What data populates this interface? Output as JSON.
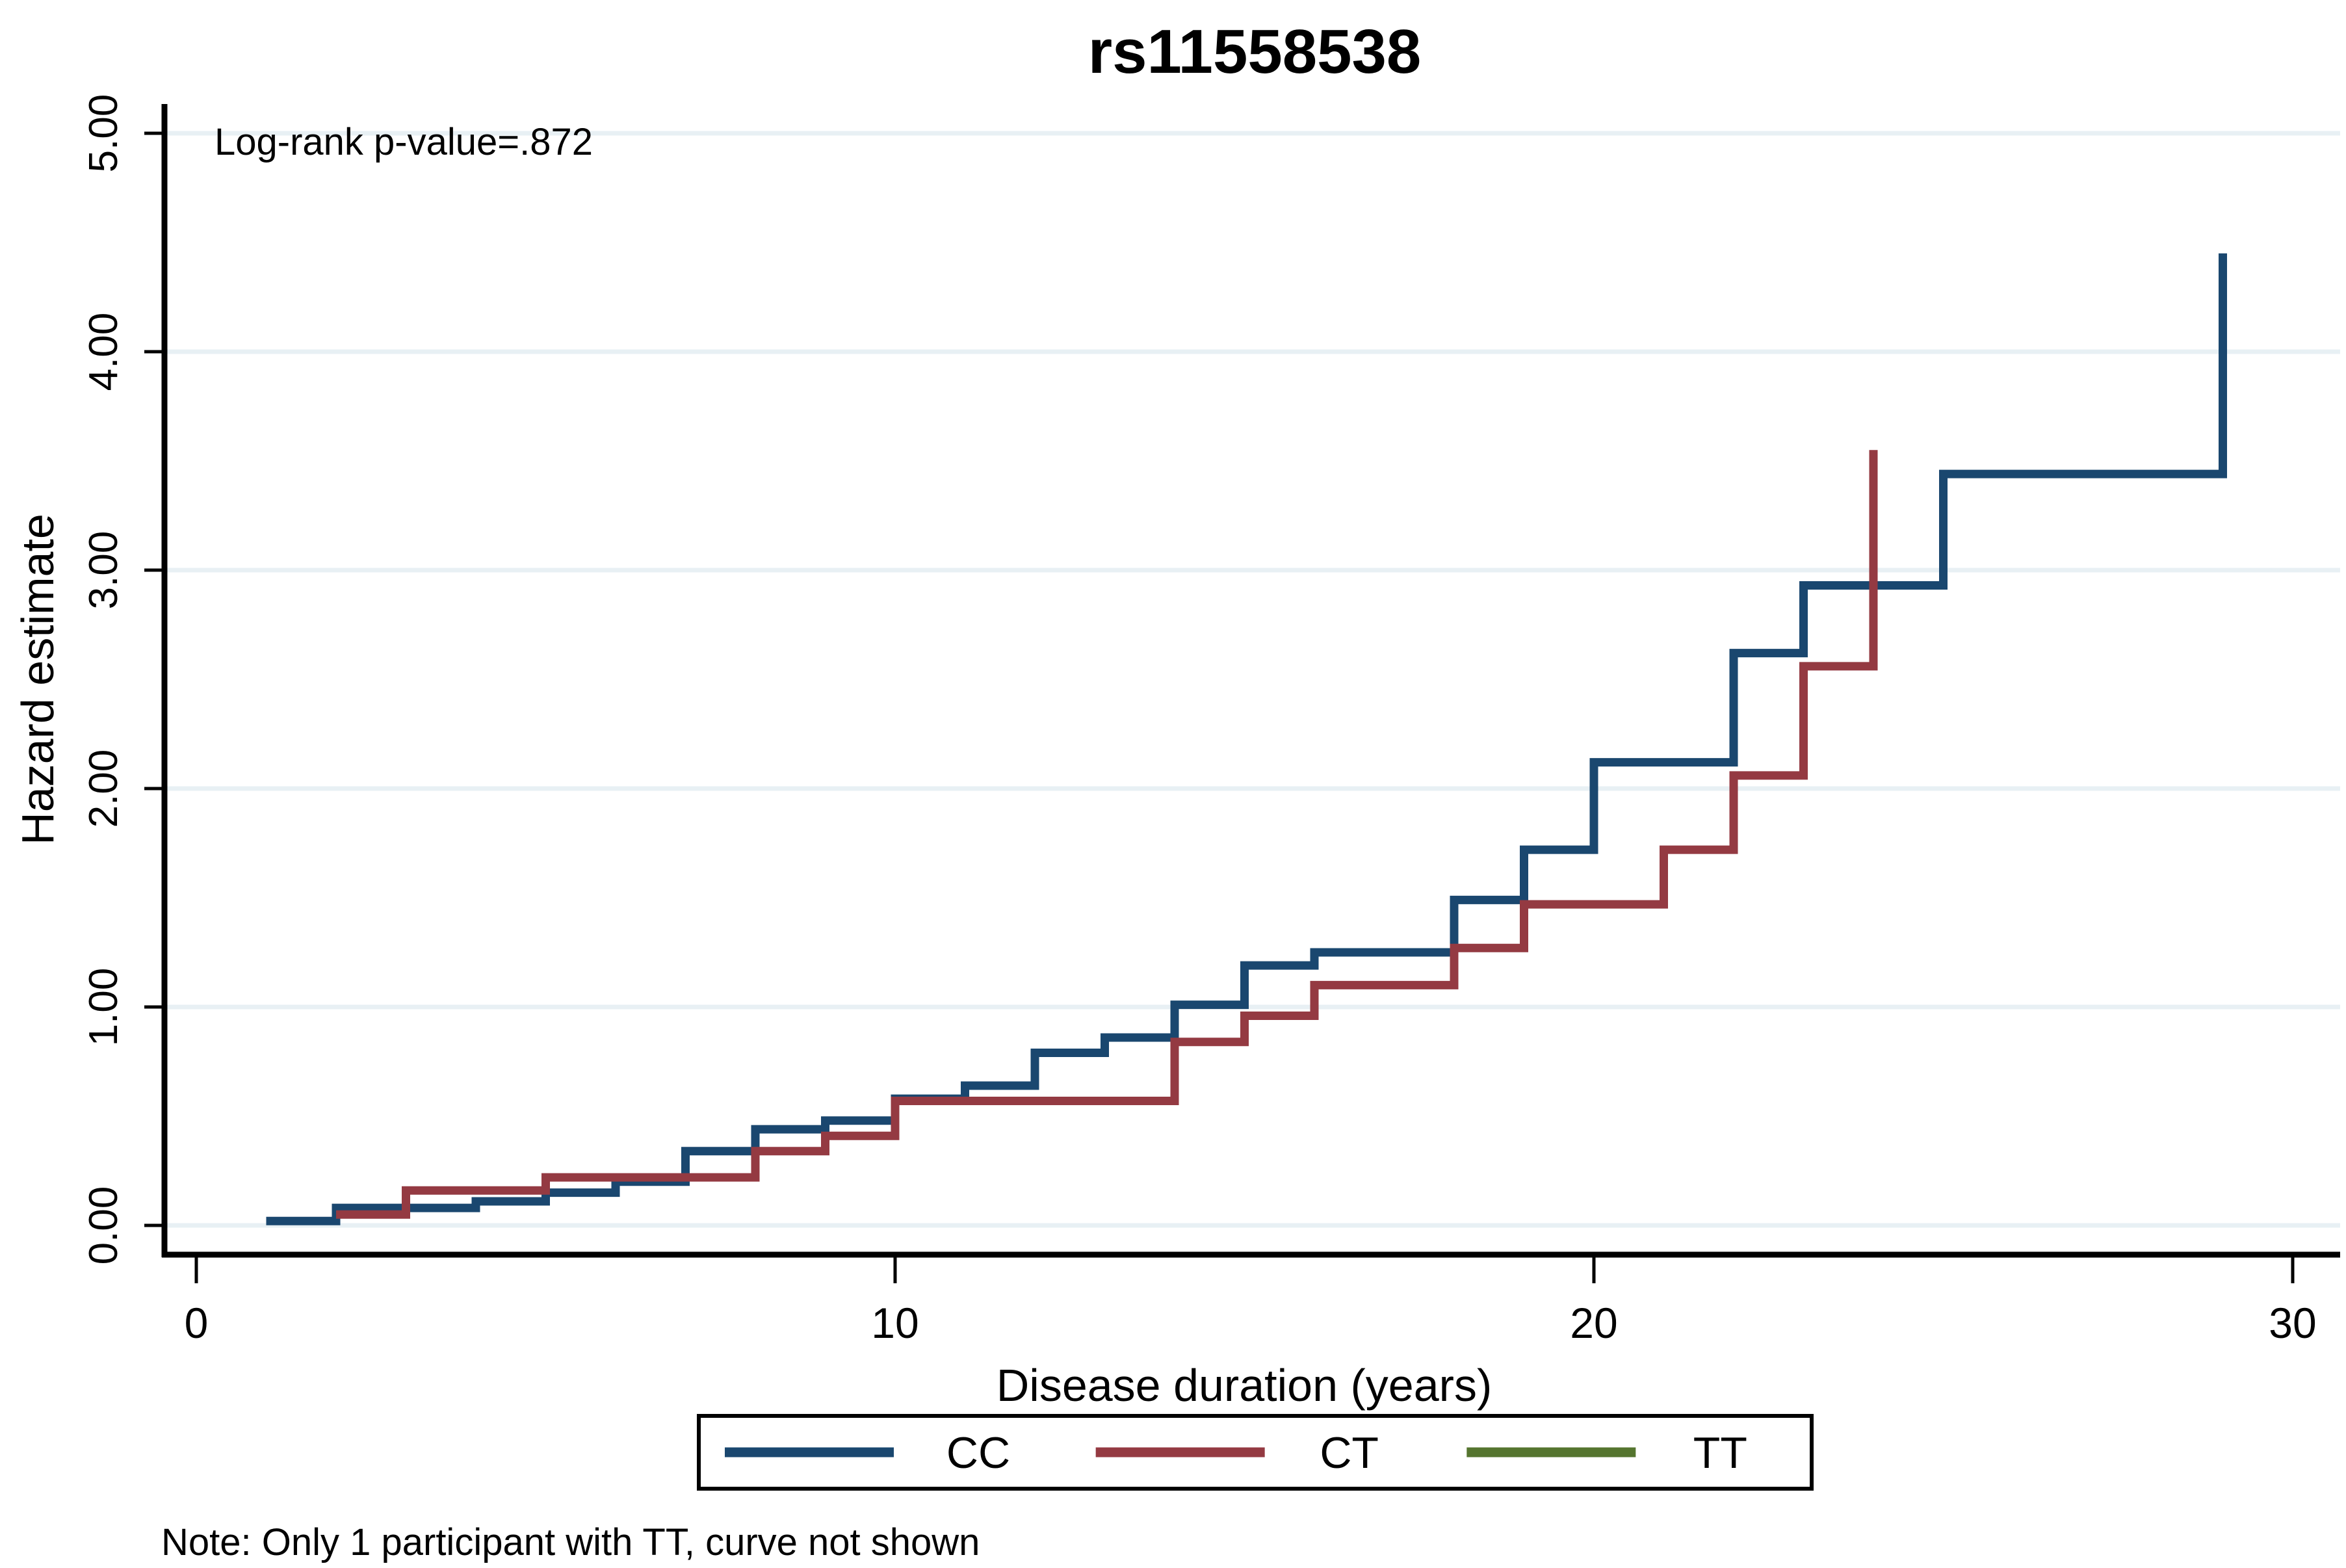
{
  "title": {
    "text": "rs11558538",
    "color": "#283c6b"
  },
  "annotation": {
    "text": "Log-rank p-value=.872"
  },
  "note": {
    "text": "Note: Only 1 participant with TT, curve not shown"
  },
  "axes": {
    "x": {
      "label": "Disease duration (years)",
      "tick_labels": [
        "0",
        "10",
        "20",
        "30"
      ],
      "tick_values": [
        0,
        10,
        20,
        30
      ],
      "range": [
        0,
        30
      ]
    },
    "y": {
      "label": "Hazard estimate",
      "tick_labels": [
        "0.00",
        "1.00",
        "2.00",
        "3.00",
        "4.00",
        "5.00"
      ],
      "tick_values": [
        0,
        1,
        2,
        3,
        4,
        5
      ],
      "range": [
        0,
        5
      ]
    }
  },
  "legend": {
    "entries": [
      {
        "label": "CC",
        "color": "#1a476f"
      },
      {
        "label": "CT",
        "color": "#943a42"
      },
      {
        "label": "TT",
        "color": "#55752f"
      }
    ]
  },
  "colors": {
    "grid": "#e8f0f4",
    "axis": "#000000",
    "background": "#ffffff",
    "navy": "#1a476f",
    "maroon": "#943a42",
    "forest": "#55752f"
  },
  "chart_data": {
    "type": "line",
    "subtype": "step-after cumulative hazard (Nelson-Aalen style)",
    "title": "rs11558538",
    "xlabel": "Disease duration (years)",
    "ylabel": "Hazard estimate",
    "xlim": [
      0,
      30
    ],
    "ylim": [
      0,
      5
    ],
    "grid": "horizontal gridlines at 0.00,1.00,2.00,3.00,4.00,5.00",
    "legend_position": "bottom",
    "annotation": "Log-rank p-value=.872",
    "series": [
      {
        "name": "CC",
        "color": "#1a476f",
        "points": [
          [
            1,
            0.02
          ],
          [
            2,
            0.08
          ],
          [
            4,
            0.11
          ],
          [
            5,
            0.15
          ],
          [
            6,
            0.2
          ],
          [
            7,
            0.34
          ],
          [
            8,
            0.44
          ],
          [
            9,
            0.48
          ],
          [
            10,
            0.58
          ],
          [
            11,
            0.64
          ],
          [
            12,
            0.79
          ],
          [
            13,
            0.86
          ],
          [
            14,
            1.01
          ],
          [
            15,
            1.19
          ],
          [
            16,
            1.25
          ],
          [
            18,
            1.49
          ],
          [
            19,
            1.72
          ],
          [
            20,
            2.12
          ],
          [
            22,
            2.62
          ],
          [
            23,
            2.93
          ],
          [
            25,
            3.44
          ],
          [
            29,
            4.45
          ]
        ]
      },
      {
        "name": "CT",
        "color": "#943a42",
        "points": [
          [
            2,
            0.05
          ],
          [
            3,
            0.16
          ],
          [
            5,
            0.22
          ],
          [
            8,
            0.34
          ],
          [
            9,
            0.41
          ],
          [
            10,
            0.57
          ],
          [
            14,
            0.84
          ],
          [
            15,
            0.96
          ],
          [
            16,
            1.1
          ],
          [
            18,
            1.27
          ],
          [
            19,
            1.47
          ],
          [
            21,
            1.72
          ],
          [
            22,
            2.06
          ],
          [
            23,
            2.56
          ],
          [
            24,
            3.55
          ]
        ]
      },
      {
        "name": "TT",
        "color": "#55752f",
        "points": [],
        "note": "Only 1 participant with TT, curve not shown"
      }
    ]
  }
}
